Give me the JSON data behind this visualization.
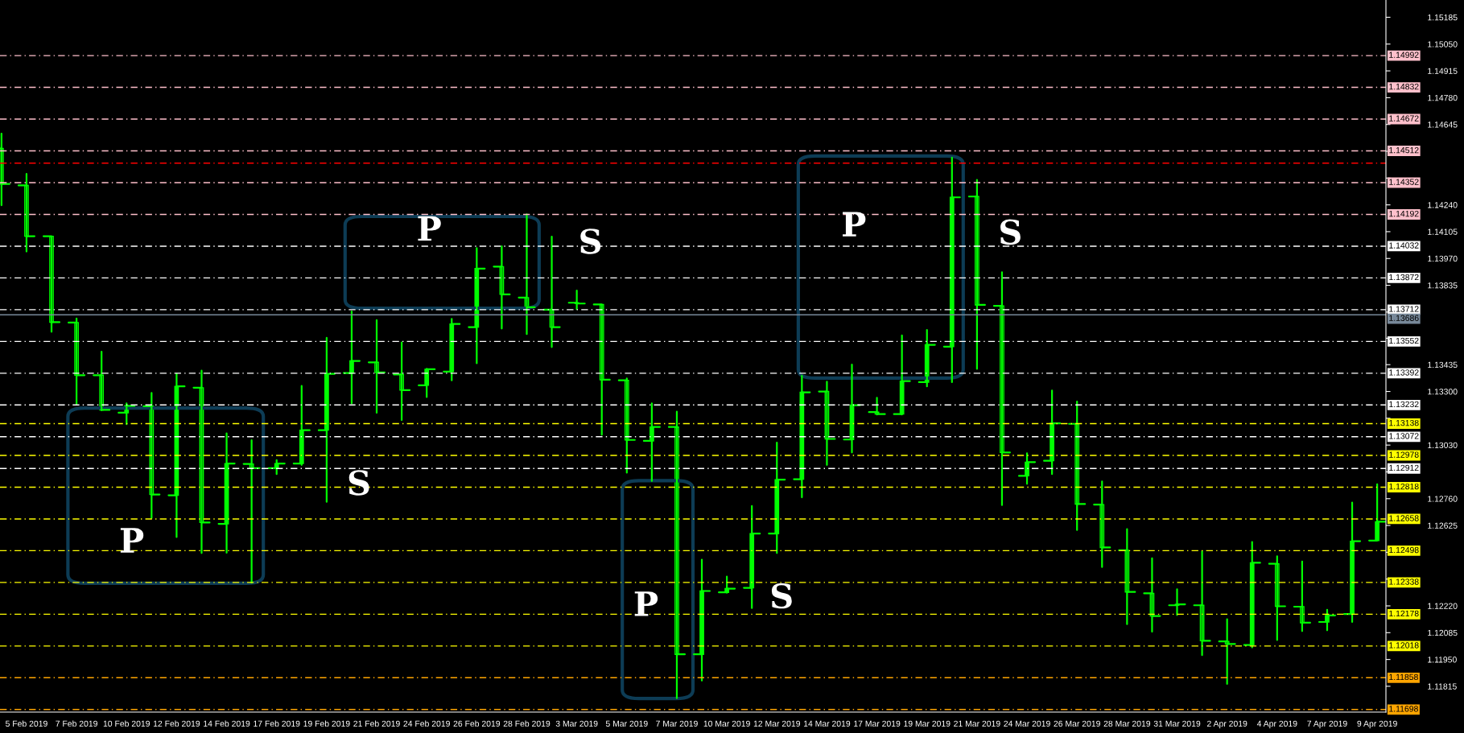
{
  "chart_data": {
    "type": "candlestick",
    "color": "#00ff00",
    "categories": [
      null,
      "5 Feb 2019",
      null,
      "7 Feb 2019",
      null,
      "10 Feb 2019",
      null,
      "12 Feb 2019",
      null,
      "14 Feb 2019",
      null,
      "17 Feb 2019",
      null,
      "19 Feb 2019",
      null,
      "21 Feb 2019",
      null,
      "24 Feb 2019",
      null,
      "26 Feb 2019",
      null,
      "28 Feb 2019",
      null,
      "3 Mar 2019",
      null,
      "5 Mar 2019",
      null,
      "7 Mar 2019",
      null,
      "10 Mar 2019",
      null,
      "12 Mar 2019",
      null,
      "14 Mar 2019",
      null,
      "17 Mar 2019",
      null,
      "19 Mar 2019",
      null,
      "21 Mar 2019",
      null,
      "24 Mar 2019",
      null,
      "26 Mar 2019",
      null,
      "28 Mar 2019",
      null,
      "31 Mar 2019",
      null,
      "2 Apr 2019",
      null,
      "4 Apr 2019",
      null,
      "7 Apr 2019",
      null,
      "9 Apr 2019"
    ],
    "ohlc": [
      [
        1.14524,
        1.14599,
        1.14238,
        1.14345
      ],
      [
        1.14338,
        1.14396,
        1.14005,
        1.14082
      ],
      [
        1.14082,
        1.14082,
        1.13601,
        1.13649
      ],
      [
        1.13647,
        1.13668,
        1.13235,
        1.13382
      ],
      [
        1.13382,
        1.135,
        1.13205,
        1.13207
      ],
      [
        1.13193,
        1.1324,
        1.13135,
        1.13228
      ],
      [
        1.13226,
        1.13293,
        1.12663,
        1.12781
      ],
      [
        1.12777,
        1.13389,
        1.12567,
        1.13326
      ],
      [
        1.13319,
        1.13405,
        1.12486,
        1.1264
      ],
      [
        1.12633,
        1.13089,
        1.12488,
        1.12937
      ],
      [
        1.12935,
        1.13054,
        1.12337,
        1.12914
      ],
      [
        1.12914,
        1.12954,
        1.12884,
        1.12937
      ],
      [
        1.12937,
        1.13328,
        1.1293,
        1.13105
      ],
      [
        1.13105,
        1.1357,
        1.12744,
        1.13389
      ],
      [
        1.13393,
        1.13703,
        1.1324,
        1.13454
      ],
      [
        1.13447,
        1.13659,
        1.13193,
        1.13396
      ],
      [
        1.13386,
        1.13547,
        1.13156,
        1.13307
      ],
      [
        1.13331,
        1.13414,
        1.13272,
        1.13412
      ],
      [
        1.134,
        1.13666,
        1.13356,
        1.1364
      ],
      [
        1.13624,
        1.14022,
        1.13442,
        1.13919
      ],
      [
        1.13929,
        1.14031,
        1.13617,
        1.13789
      ],
      [
        1.13773,
        1.14192,
        1.13589,
        1.13724
      ],
      [
        1.13712,
        1.1408,
        1.13524,
        1.13624
      ],
      [
        1.13747,
        1.13808,
        1.13715,
        1.13743
      ],
      [
        1.13738,
        1.13738,
        1.13082,
        1.13359
      ],
      [
        1.13356,
        1.13366,
        1.12891,
        1.13056
      ],
      [
        1.13051,
        1.1324,
        1.12849,
        1.13121
      ],
      [
        1.13121,
        1.13198,
        1.11755,
        1.11976
      ],
      [
        1.11976,
        1.12453,
        1.11844,
        1.12295
      ],
      [
        1.12288,
        1.12367,
        1.12286,
        1.12307
      ],
      [
        1.12311,
        1.12723,
        1.12209,
        1.12584
      ],
      [
        1.12584,
        1.13042,
        1.12486,
        1.12856
      ],
      [
        1.12858,
        1.13379,
        1.12767,
        1.13296
      ],
      [
        1.133,
        1.13349,
        1.1293,
        1.13061
      ],
      [
        1.13058,
        1.13435,
        1.12993,
        1.13231
      ],
      [
        1.13196,
        1.13268,
        1.13184,
        1.13186
      ],
      [
        1.13186,
        1.13582,
        1.13184,
        1.13352
      ],
      [
        1.13347,
        1.1361,
        1.13326,
        1.13535
      ],
      [
        1.13526,
        1.14478,
        1.13347,
        1.14278
      ],
      [
        1.14282,
        1.14366,
        1.13414,
        1.13736
      ],
      [
        1.13731,
        1.13901,
        1.12728,
        1.12993
      ],
      [
        1.12875,
        1.12989,
        1.12835,
        1.12944
      ],
      [
        1.12951,
        1.13305,
        1.12884,
        1.1314
      ],
      [
        1.13137,
        1.13249,
        1.12602,
        1.12733
      ],
      [
        1.1273,
        1.12847,
        1.12416,
        1.12514
      ],
      [
        1.125,
        1.12607,
        1.12128,
        1.1229
      ],
      [
        1.12283,
        1.1246,
        1.1209,
        1.12169
      ],
      [
        1.12223,
        1.12304,
        1.12174,
        1.12228
      ],
      [
        1.12223,
        1.12495,
        1.11972,
        1.12044
      ],
      [
        1.12041,
        1.12153,
        1.11827,
        1.12028
      ],
      [
        1.12023,
        1.12542,
        1.12011,
        1.12437
      ],
      [
        1.12432,
        1.1247,
        1.12048,
        1.12218
      ],
      [
        1.12216,
        1.12444,
        1.12093,
        1.12135
      ],
      [
        1.12139,
        1.122,
        1.12097,
        1.12172
      ],
      [
        1.12179,
        1.1274,
        1.12139,
        1.12546
      ],
      [
        1.12549,
        1.12833,
        1.12549,
        1.12644
      ]
    ],
    "ylim": [
      1.11685,
      1.15272
    ],
    "yticks": [
      {
        "value": 1.15185,
        "label": "1.15185"
      },
      {
        "value": 1.1505,
        "label": "1.15050"
      },
      {
        "value": 1.14915,
        "label": "1.14915"
      },
      {
        "value": 1.1478,
        "label": "1.14780"
      },
      {
        "value": 1.14645,
        "label": "1.14645"
      },
      {
        "value": 1.1451,
        "label": null
      },
      {
        "value": 1.14375,
        "label": null
      },
      {
        "value": 1.1424,
        "label": "1.14240"
      },
      {
        "value": 1.14105,
        "label": "1.14105"
      },
      {
        "value": 1.1397,
        "label": "1.13970"
      },
      {
        "value": 1.13835,
        "label": "1.13835"
      },
      {
        "value": 1.137,
        "label": null
      },
      {
        "value": 1.13568,
        "label": null
      },
      {
        "value": 1.13435,
        "label": "1.13435"
      },
      {
        "value": 1.133,
        "label": "1.13300"
      },
      {
        "value": 1.13165,
        "label": null
      },
      {
        "value": 1.1303,
        "label": "1.13030"
      },
      {
        "value": 1.12895,
        "label": null
      },
      {
        "value": 1.1276,
        "label": "1.12760"
      },
      {
        "value": 1.12625,
        "label": "1.12625"
      },
      {
        "value": 1.1249,
        "label": null
      },
      {
        "value": 1.12355,
        "label": null
      },
      {
        "value": 1.1222,
        "label": "1.12220"
      },
      {
        "value": 1.12085,
        "label": "1.12085"
      },
      {
        "value": 1.1195,
        "label": "1.11950"
      },
      {
        "value": 1.11815,
        "label": "1.11815"
      }
    ],
    "ref_lines": [
      {
        "axis": "y",
        "value": 1.14992,
        "label": "1.14992",
        "color": "#ffc0cb",
        "line_style": "dashed"
      },
      {
        "axis": "y",
        "value": 1.14832,
        "label": "1.14832",
        "color": "#ffc0cb",
        "line_style": "dashed"
      },
      {
        "axis": "y",
        "value": 1.14672,
        "label": "1.14672",
        "color": "#ffc0cb",
        "line_style": "dashed"
      },
      {
        "axis": "y",
        "value": 1.14512,
        "label": "1.14512",
        "color": "#ffc0cb",
        "line_style": "dashed"
      },
      {
        "axis": "y",
        "value": 1.1445,
        "color": "#ff0000",
        "line_style": "dashed"
      },
      {
        "axis": "y",
        "value": 1.14352,
        "label": "1.14352",
        "color": "#ffc0cb",
        "line_style": "dashed"
      },
      {
        "axis": "y",
        "value": 1.14192,
        "label": "1.14192",
        "color": "#ffc0cb",
        "line_style": "dashed"
      },
      {
        "axis": "y",
        "value": 1.14032,
        "label": "1.14032",
        "color": "#ffffff",
        "line_style": "dashed"
      },
      {
        "axis": "y",
        "value": 1.13872,
        "label": "1.13872",
        "color": "#ffffff",
        "line_style": "dashed"
      },
      {
        "axis": "y",
        "value": 1.13712,
        "label": "1.13712",
        "color": "#ffffff",
        "line_style": "dashed"
      },
      {
        "axis": "y",
        "value": 1.13686,
        "label": "1.13686",
        "color": "#778899",
        "line_style": "solid"
      },
      {
        "axis": "y",
        "value": 1.13552,
        "label": "1.13552",
        "color": "#ffffff",
        "line_style": "dashed"
      },
      {
        "axis": "y",
        "value": 1.13392,
        "label": "1.13392",
        "color": "#ffffff",
        "line_style": "dashed"
      },
      {
        "axis": "y",
        "value": 1.13232,
        "label": "1.13232",
        "color": "#ffffff",
        "line_style": "dashed"
      },
      {
        "axis": "y",
        "value": 1.13138,
        "label": "1.13138",
        "color": "#ffff00",
        "line_style": "dashed"
      },
      {
        "axis": "y",
        "value": 1.13072,
        "label": "1.13072",
        "color": "#ffffff",
        "line_style": "dashed"
      },
      {
        "axis": "y",
        "value": 1.12978,
        "label": "1.12978",
        "color": "#ffff00",
        "line_style": "dashed"
      },
      {
        "axis": "y",
        "value": 1.12912,
        "label": "1.12912",
        "color": "#ffffff",
        "line_style": "dashed"
      },
      {
        "axis": "y",
        "value": 1.12818,
        "label": "1.12818",
        "color": "#ffff00",
        "line_style": "dashed"
      },
      {
        "axis": "y",
        "value": 1.12658,
        "label": "1.12658",
        "color": "#ffff00",
        "line_style": "dashed"
      },
      {
        "axis": "y",
        "value": 1.12498,
        "label": "1.12498",
        "color": "#ffff00",
        "line_style": "dashed"
      },
      {
        "axis": "y",
        "value": 1.12338,
        "label": "1.12338",
        "color": "#ffff00",
        "line_style": "dashed"
      },
      {
        "axis": "y",
        "value": 1.12178,
        "label": "1.12178",
        "color": "#ffff00",
        "line_style": "dashed"
      },
      {
        "axis": "y",
        "value": 1.12018,
        "label": "1.12018",
        "color": "#ffff00",
        "line_style": "dashed"
      },
      {
        "axis": "y",
        "value": 1.11858,
        "label": "1.11858",
        "color": "#ffa500",
        "line_style": "dashed"
      },
      {
        "axis": "y",
        "value": 1.11698,
        "label": "1.11698",
        "color": "#ffa500",
        "line_style": "dashed"
      }
    ],
    "annotations": [
      "P",
      "S",
      "P",
      "S",
      "P",
      "S",
      "P",
      "S"
    ]
  }
}
